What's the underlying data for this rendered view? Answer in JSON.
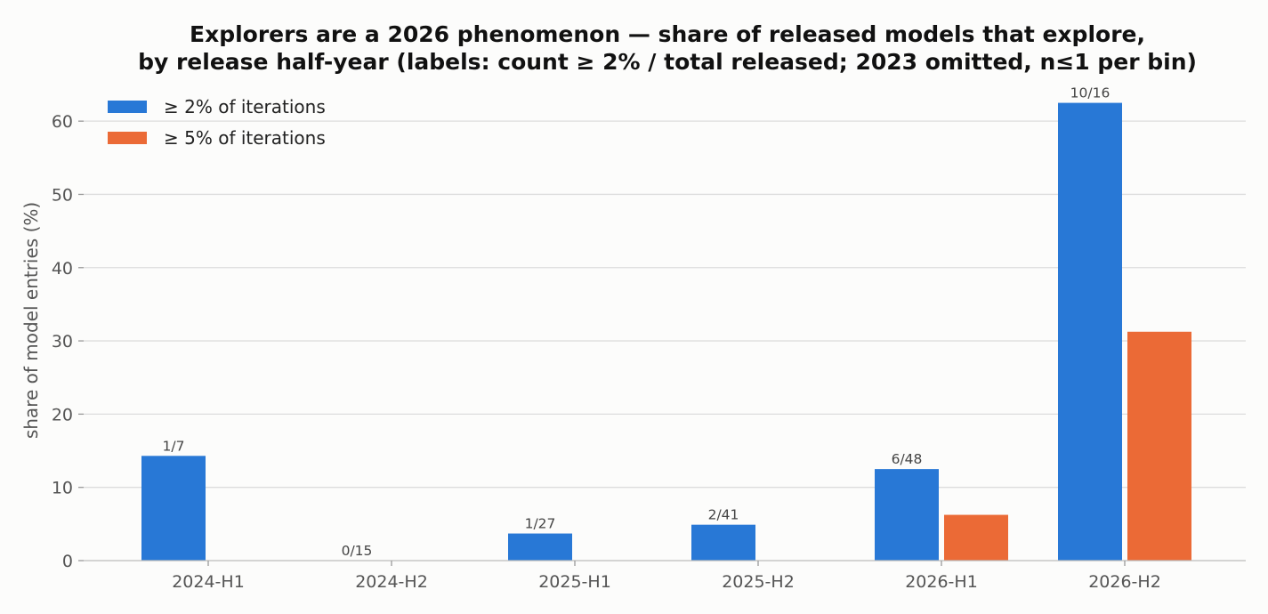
{
  "chart_data": {
    "type": "bar",
    "title_lines": [
      "Explorers are a 2026 phenomenon — share of released models that explore,",
      "by release half-year (labels: count ≥ 2% / total released; 2023 omitted, n≤1 per bin)"
    ],
    "xlabel": "",
    "ylabel": "share of model entries (%)",
    "ylim": [
      0,
      65
    ],
    "yticks": [
      0,
      10,
      20,
      30,
      40,
      50,
      60
    ],
    "grid": "horizontal",
    "legend_position": "top-left",
    "categories": [
      "2024-H1",
      "2024-H2",
      "2025-H1",
      "2025-H2",
      "2026-H1",
      "2026-H2"
    ],
    "series": [
      {
        "name": "≥ 2% of iterations",
        "color": "#2878d6",
        "values": [
          14.3,
          0,
          3.7,
          4.9,
          12.5,
          62.5
        ]
      },
      {
        "name": "≥ 5% of iterations",
        "color": "#eb6a36",
        "values": [
          0,
          0,
          0,
          0,
          6.25,
          31.25
        ]
      }
    ],
    "bar_labels": [
      "1/7",
      "0/15",
      "1/27",
      "2/41",
      "6/48",
      "10/16"
    ]
  }
}
